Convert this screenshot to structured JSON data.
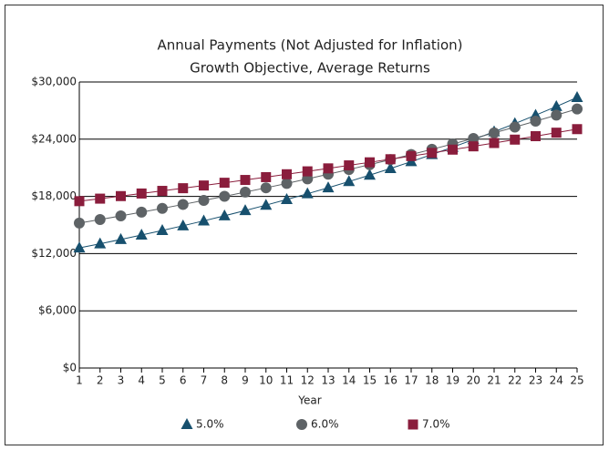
{
  "chart_data": {
    "type": "line",
    "title": "Annual Payments (Not Adjusted for Inflation)",
    "subtitle": "Growth Objective, Average Returns",
    "x_label": "Year",
    "x": [
      1,
      2,
      3,
      4,
      5,
      6,
      7,
      8,
      9,
      10,
      11,
      12,
      13,
      14,
      15,
      16,
      17,
      18,
      19,
      20,
      21,
      22,
      23,
      24,
      25
    ],
    "xlim": [
      1,
      25
    ],
    "xticks": [
      1,
      2,
      3,
      4,
      5,
      6,
      7,
      8,
      9,
      10,
      11,
      12,
      13,
      14,
      15,
      16,
      17,
      18,
      19,
      20,
      21,
      22,
      23,
      24,
      25
    ],
    "ylim": [
      0,
      30000
    ],
    "yticks": [
      {
        "value": 0,
        "label": "$0"
      },
      {
        "value": 6000,
        "label": "$6,000"
      },
      {
        "value": 12000,
        "label": "$12,000"
      },
      {
        "value": 18000,
        "label": "$18,000"
      },
      {
        "value": 24000,
        "label": "$24,000"
      },
      {
        "value": 30000,
        "label": "$30,000"
      }
    ],
    "grid": true,
    "legend": "bottom",
    "series": [
      {
        "name": "5.0%",
        "color": "#17506e",
        "marker": "triangle",
        "values": [
          12600,
          13034,
          13482,
          13946,
          14426,
          14922,
          15435,
          15966,
          16515,
          17083,
          17671,
          18279,
          18908,
          19558,
          20231,
          20927,
          21647,
          22392,
          23162,
          23959,
          24783,
          25636,
          26518,
          27430,
          28374
        ]
      },
      {
        "name": "6.0%",
        "color": "#5e6366",
        "marker": "circle",
        "values": [
          15200,
          15572,
          15954,
          16345,
          16745,
          17155,
          17576,
          18006,
          18447,
          18899,
          19362,
          19837,
          20323,
          20821,
          21331,
          21853,
          22389,
          22937,
          23499,
          24075,
          24665,
          25269,
          25888,
          26522,
          27172
        ]
      },
      {
        "name": "7.0%",
        "color": "#8a1d3c",
        "marker": "square",
        "values": [
          17500,
          17764,
          18031,
          18303,
          18579,
          18858,
          19143,
          19431,
          19724,
          20021,
          20322,
          20628,
          20939,
          21254,
          21574,
          21899,
          22229,
          22564,
          22904,
          23249,
          23599,
          23955,
          24316,
          24682,
          25054
        ]
      }
    ]
  }
}
